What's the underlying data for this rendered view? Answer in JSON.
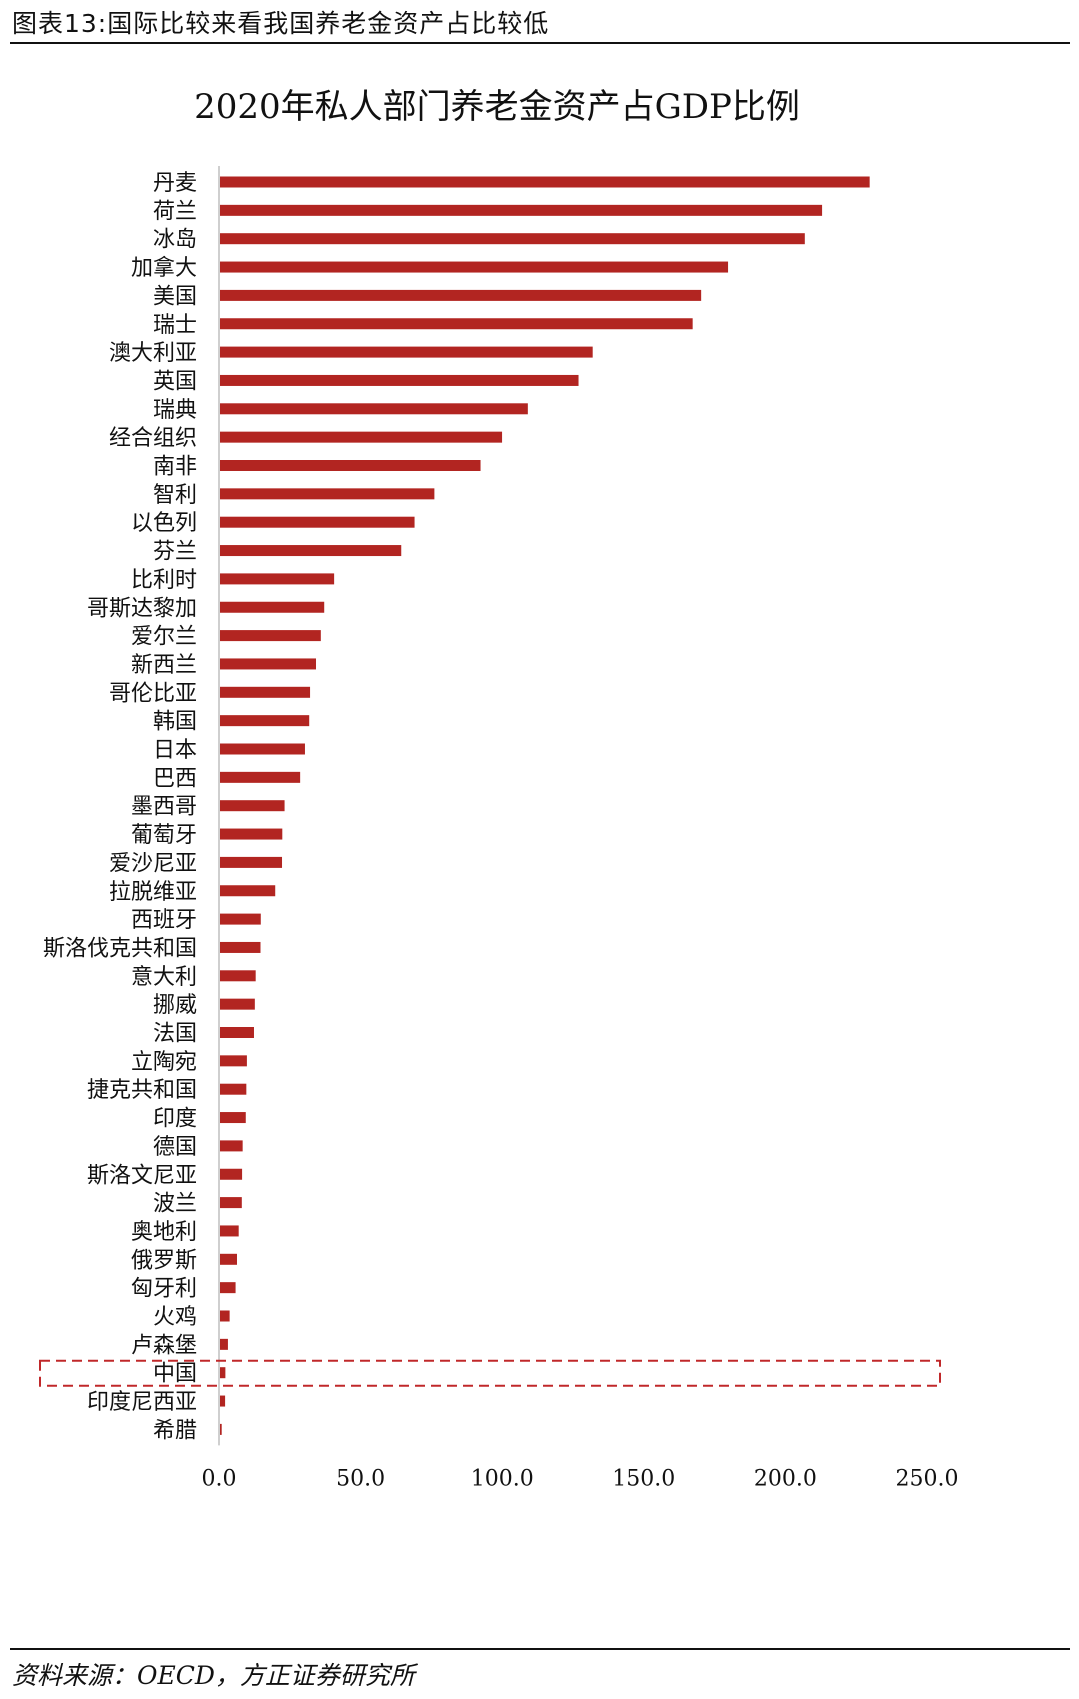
{
  "header": {
    "title": "图表13:国际比较来看我国养老金资产占比较低"
  },
  "footer": {
    "source": "资料来源：OECD，方正证券研究所"
  },
  "colors": {
    "bar": "#b22521",
    "highlight_box": "#c0282a",
    "axis": "#bfbfbf"
  },
  "chart_data": {
    "type": "bar",
    "orientation": "horizontal",
    "title": "2020年私人部门养老金资产占GDP比例",
    "categories": [
      "丹麦",
      "荷兰",
      "冰岛",
      "加拿大",
      "美国",
      "瑞士",
      "澳大利亚",
      "英国",
      "瑞典",
      "经合组织",
      "南非",
      "智利",
      "以色列",
      "芬兰",
      "比利时",
      "哥斯达黎加",
      "爱尔兰",
      "新西兰",
      "哥伦比亚",
      "韩国",
      "日本",
      "巴西",
      "墨西哥",
      "葡萄牙",
      "爱沙尼亚",
      "拉脱维亚",
      "西班牙",
      "斯洛伐克共和国",
      "意大利",
      "挪威",
      "法国",
      "立陶宛",
      "捷克共和国",
      "印度",
      "德国",
      "斯洛文尼亚",
      "波兰",
      "奥地利",
      "俄罗斯",
      "匈牙利",
      "火鸡",
      "卢森堡",
      "中国",
      "印度尼西亚",
      "希腊"
    ],
    "values": [
      229.4,
      212.6,
      206.5,
      179.4,
      169.9,
      166.9,
      131.6,
      126.6,
      108.7,
      99.6,
      92.0,
      75.7,
      68.7,
      64.0,
      40.3,
      36.8,
      35.6,
      33.9,
      31.8,
      31.5,
      30.0,
      28.3,
      22.8,
      22.0,
      21.9,
      19.5,
      14.4,
      14.3,
      12.6,
      12.3,
      12.0,
      9.5,
      9.3,
      9.1,
      8.0,
      7.8,
      7.7,
      6.6,
      6.0,
      5.5,
      3.4,
      2.8,
      1.9,
      1.8,
      0.6
    ],
    "xlim": [
      0,
      250
    ],
    "xticks": [
      "0.0",
      "50.0",
      "100.0",
      "150.0",
      "200.0",
      "250.0"
    ],
    "highlight": "中国",
    "grid": false,
    "legend": "none"
  }
}
